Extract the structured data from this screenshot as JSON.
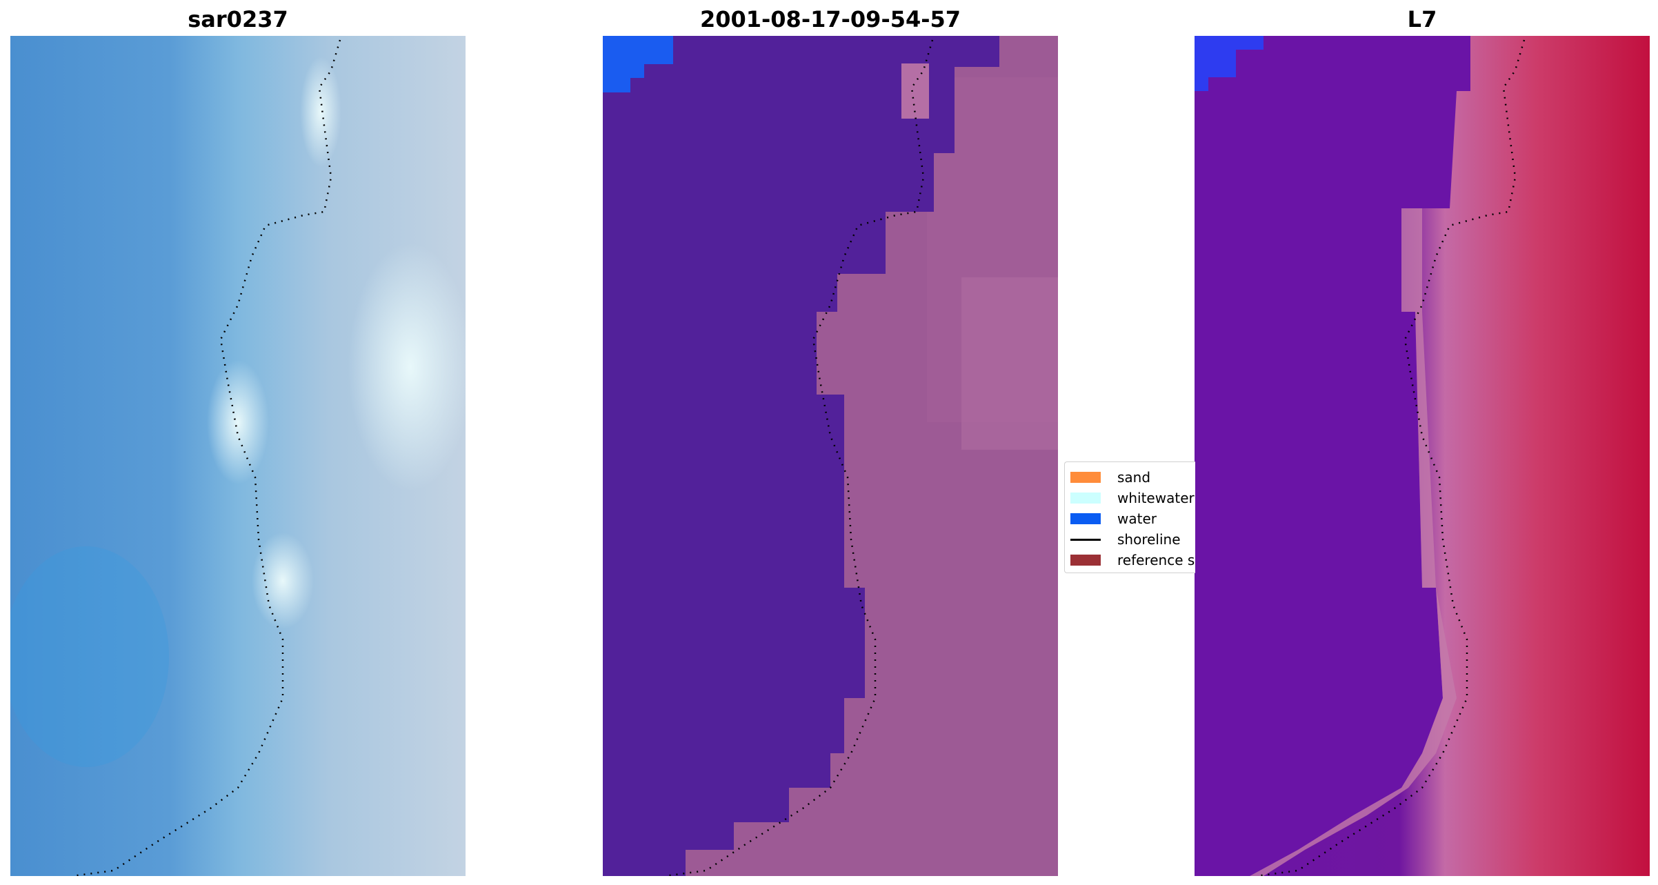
{
  "panels": [
    {
      "title": "sar0237"
    },
    {
      "title": "2001-08-17-09-54-57"
    },
    {
      "title": "L7"
    }
  ],
  "legend": {
    "items": [
      {
        "label": "sand",
        "color": "#ff8c3a",
        "kind": "patch"
      },
      {
        "label": "whitewater",
        "color": "#ccffff",
        "kind": "patch"
      },
      {
        "label": "water",
        "color": "#0a5cf2",
        "kind": "patch"
      },
      {
        "label": "shoreline",
        "color": "#000000",
        "kind": "line"
      },
      {
        "label": "reference sl",
        "color": "#9b3035",
        "kind": "patch"
      }
    ]
  },
  "colors": {
    "rgb_water": "#4a8fd0",
    "rgb_land": "#b8cfe2",
    "class_water": "#52219a",
    "class_land": "#9d5a95",
    "mndwi_water": "#6a14a6",
    "mndwi_land": "#cc2b55",
    "corner_blue": "#1a5cf0"
  }
}
